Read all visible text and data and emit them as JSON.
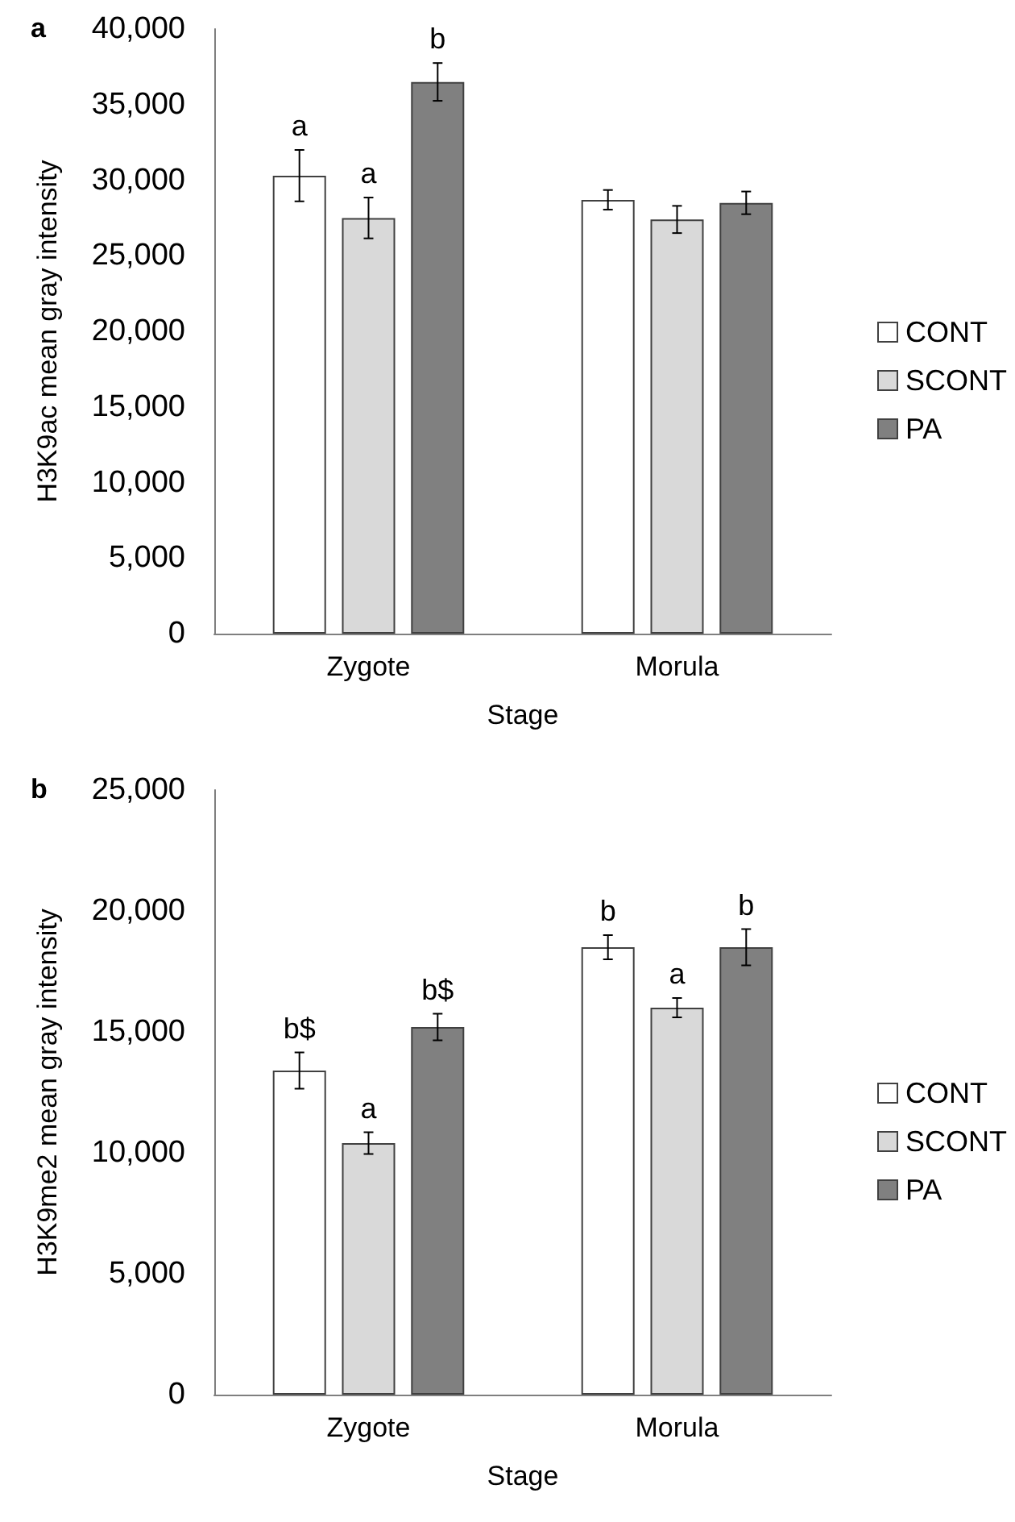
{
  "chart_data": [
    {
      "type": "bar",
      "title": "a",
      "xlabel": "Stage",
      "ylabel": "H3K9ac mean gray intensity",
      "categories": [
        "Zygote",
        "Morula"
      ],
      "ylim": [
        0,
        40000
      ],
      "yticks": [
        0,
        {
          "value": 5000,
          "label": "5,000"
        },
        {
          "value": 10000,
          "label": "10,000"
        },
        {
          "value": 15000,
          "label": "15,000"
        },
        {
          "value": 20000,
          "label": "20,000"
        },
        {
          "value": 25000,
          "label": "25,000"
        },
        {
          "value": 30000,
          "label": "30,000"
        },
        {
          "value": 35000,
          "label": "35,000"
        },
        {
          "value": 40000,
          "label": "40,000"
        }
      ],
      "grid": false,
      "legend": "right",
      "series": [
        {
          "name": "CONT",
          "color": "#ffffff",
          "values": [
            30300,
            28700
          ],
          "errors": [
            1700,
            650
          ],
          "value_labels": [
            "a",
            null
          ]
        },
        {
          "name": "SCONT",
          "color": "#d9d9d9",
          "values": [
            27500,
            27400
          ],
          "errors": [
            1350,
            900
          ],
          "value_labels": [
            "a",
            null
          ]
        },
        {
          "name": "PA",
          "color": "#808080",
          "values": [
            36500,
            28500
          ],
          "errors": [
            1250,
            750
          ],
          "value_labels": [
            "b",
            null
          ]
        }
      ]
    },
    {
      "type": "bar",
      "title": "b",
      "xlabel": "Stage",
      "ylabel": "H3K9me2 mean gray intensity",
      "categories": [
        "Zygote",
        "Morula"
      ],
      "ylim": [
        0,
        25000
      ],
      "yticks": [
        0,
        {
          "value": 5000,
          "label": "5,000"
        },
        {
          "value": 10000,
          "label": "10,000"
        },
        {
          "value": 15000,
          "label": "15,000"
        },
        {
          "value": 20000,
          "label": "20,000"
        },
        {
          "value": 25000,
          "label": "25,000"
        }
      ],
      "grid": false,
      "legend": "right",
      "series": [
        {
          "name": "CONT",
          "color": "#ffffff",
          "values": [
            13400,
            18500
          ],
          "errors": [
            750,
            500
          ],
          "value_labels": [
            "b$",
            "b"
          ]
        },
        {
          "name": "SCONT",
          "color": "#d9d9d9",
          "values": [
            10400,
            16000
          ],
          "errors": [
            450,
            400
          ],
          "value_labels": [
            "a",
            "a"
          ]
        },
        {
          "name": "PA",
          "color": "#808080",
          "values": [
            15200,
            18500
          ],
          "errors": [
            550,
            750
          ],
          "value_labels": [
            "b$",
            "b"
          ]
        }
      ]
    }
  ]
}
